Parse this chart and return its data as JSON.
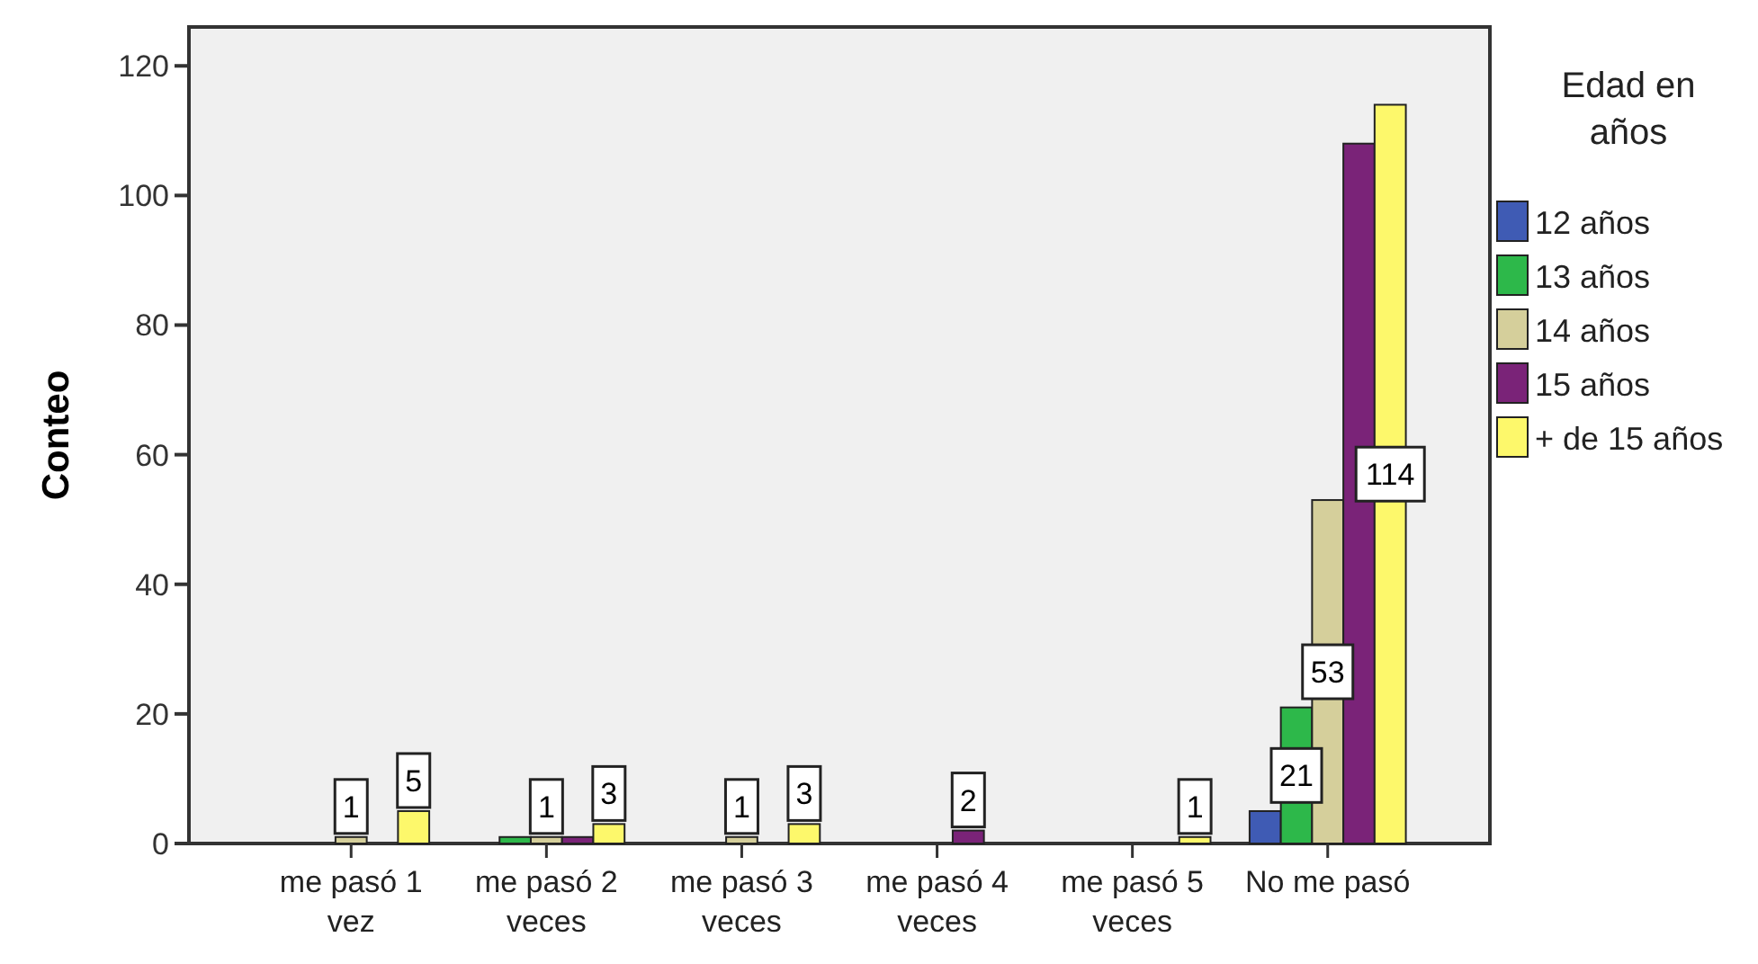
{
  "chart_data": {
    "type": "bar",
    "ylabel": "Conteo",
    "legend_title": "Edad en años",
    "legend": "right",
    "categories": [
      "me pasó 1 vez",
      "me pasó 2 veces",
      "me pasó 3 veces",
      "me pasó 4 veces",
      "me pasó 5 veces",
      "No me pasó"
    ],
    "ylim": [
      0,
      126
    ],
    "yticks": [
      0,
      20,
      40,
      60,
      80,
      100,
      120
    ],
    "grid": false,
    "series": [
      {
        "name": "12 años",
        "color": "#3f5bb4",
        "values": [
          0,
          0,
          0,
          0,
          0,
          5
        ],
        "value_labels": [
          null,
          null,
          null,
          null,
          null,
          null
        ]
      },
      {
        "name": "13 años",
        "color": "#2db84a",
        "values": [
          0,
          1,
          0,
          0,
          0,
          21
        ],
        "value_labels": [
          null,
          null,
          null,
          null,
          null,
          "21"
        ]
      },
      {
        "name": "14 años",
        "color": "#d5cf9b",
        "values": [
          1,
          1,
          1,
          0,
          0,
          53
        ],
        "value_labels": [
          "1",
          "1",
          "1",
          null,
          null,
          "53"
        ]
      },
      {
        "name": "15 años",
        "color": "#7a2378",
        "values": [
          0,
          1,
          0,
          2,
          0,
          108
        ],
        "value_labels": [
          null,
          null,
          null,
          "2",
          null,
          null
        ]
      },
      {
        "name": "+ de 15 años",
        "color": "#fdf86b",
        "values": [
          5,
          3,
          3,
          0,
          1,
          114
        ],
        "value_labels": [
          "5",
          "3",
          "3",
          null,
          "1",
          "114"
        ]
      }
    ]
  }
}
